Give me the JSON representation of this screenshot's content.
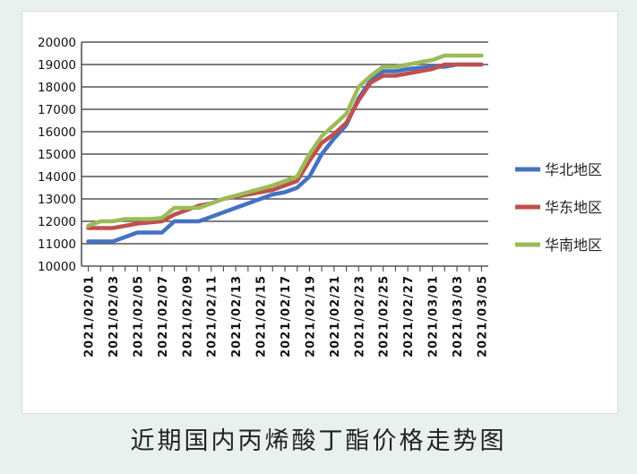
{
  "caption": "近期国内丙烯酸丁酯价格走势图",
  "chart_data": {
    "type": "line",
    "title": "",
    "xlabel": "",
    "ylabel": "",
    "ylim": [
      10000,
      20000
    ],
    "yticks": [
      10000,
      11000,
      12000,
      13000,
      14000,
      15000,
      16000,
      17000,
      18000,
      19000,
      20000
    ],
    "grid": true,
    "legend_position": "right",
    "x": [
      "2021/02/01",
      "2021/02/02",
      "2021/02/03",
      "2021/02/04",
      "2021/02/05",
      "2021/02/06",
      "2021/02/07",
      "2021/02/08",
      "2021/02/09",
      "2021/02/10",
      "2021/02/11",
      "2021/02/12",
      "2021/02/13",
      "2021/02/14",
      "2021/02/15",
      "2021/02/16",
      "2021/02/17",
      "2021/02/18",
      "2021/02/19",
      "2021/02/20",
      "2021/02/21",
      "2021/02/22",
      "2021/02/23",
      "2021/02/24",
      "2021/02/25",
      "2021/02/26",
      "2021/02/27",
      "2021/02/28",
      "2021/03/01",
      "2021/03/02",
      "2021/03/03",
      "2021/03/04",
      "2021/03/05"
    ],
    "xtick_labels": [
      "2021/02/01",
      "2021/02/03",
      "2021/02/05",
      "2021/02/07",
      "2021/02/09",
      "2021/02/11",
      "2021/02/13",
      "2021/02/15",
      "2021/02/17",
      "2021/02/19",
      "2021/02/21",
      "2021/02/23",
      "2021/02/25",
      "2021/02/27",
      "2021/03/01",
      "2021/03/03",
      "2021/03/05"
    ],
    "series": [
      {
        "name": "华北地区",
        "color": "#4472c4",
        "values": [
          11100,
          11100,
          11100,
          11300,
          11500,
          11500,
          11500,
          12000,
          12000,
          12000,
          12200,
          12400,
          12600,
          12800,
          13000,
          13200,
          13300,
          13500,
          14000,
          15000,
          15700,
          16300,
          17500,
          18300,
          18700,
          18700,
          18800,
          18850,
          18900,
          18900,
          19000,
          19000,
          19000
        ]
      },
      {
        "name": "华东地区",
        "color": "#c0504d",
        "values": [
          11700,
          11700,
          11700,
          11800,
          11900,
          11950,
          12000,
          12300,
          12500,
          12700,
          12800,
          13000,
          13100,
          13200,
          13300,
          13400,
          13600,
          13800,
          14700,
          15500,
          15900,
          16400,
          17400,
          18200,
          18500,
          18500,
          18600,
          18700,
          18800,
          19000,
          19000,
          19000,
          19000
        ]
      },
      {
        "name": "华南地区",
        "color": "#9bbb59",
        "values": [
          11800,
          12000,
          12000,
          12100,
          12100,
          12100,
          12150,
          12600,
          12600,
          12600,
          12800,
          13000,
          13150,
          13300,
          13450,
          13600,
          13800,
          14000,
          15000,
          15800,
          16300,
          16800,
          18000,
          18500,
          18900,
          18900,
          19000,
          19100,
          19200,
          19400,
          19400,
          19400,
          19400
        ]
      }
    ]
  }
}
